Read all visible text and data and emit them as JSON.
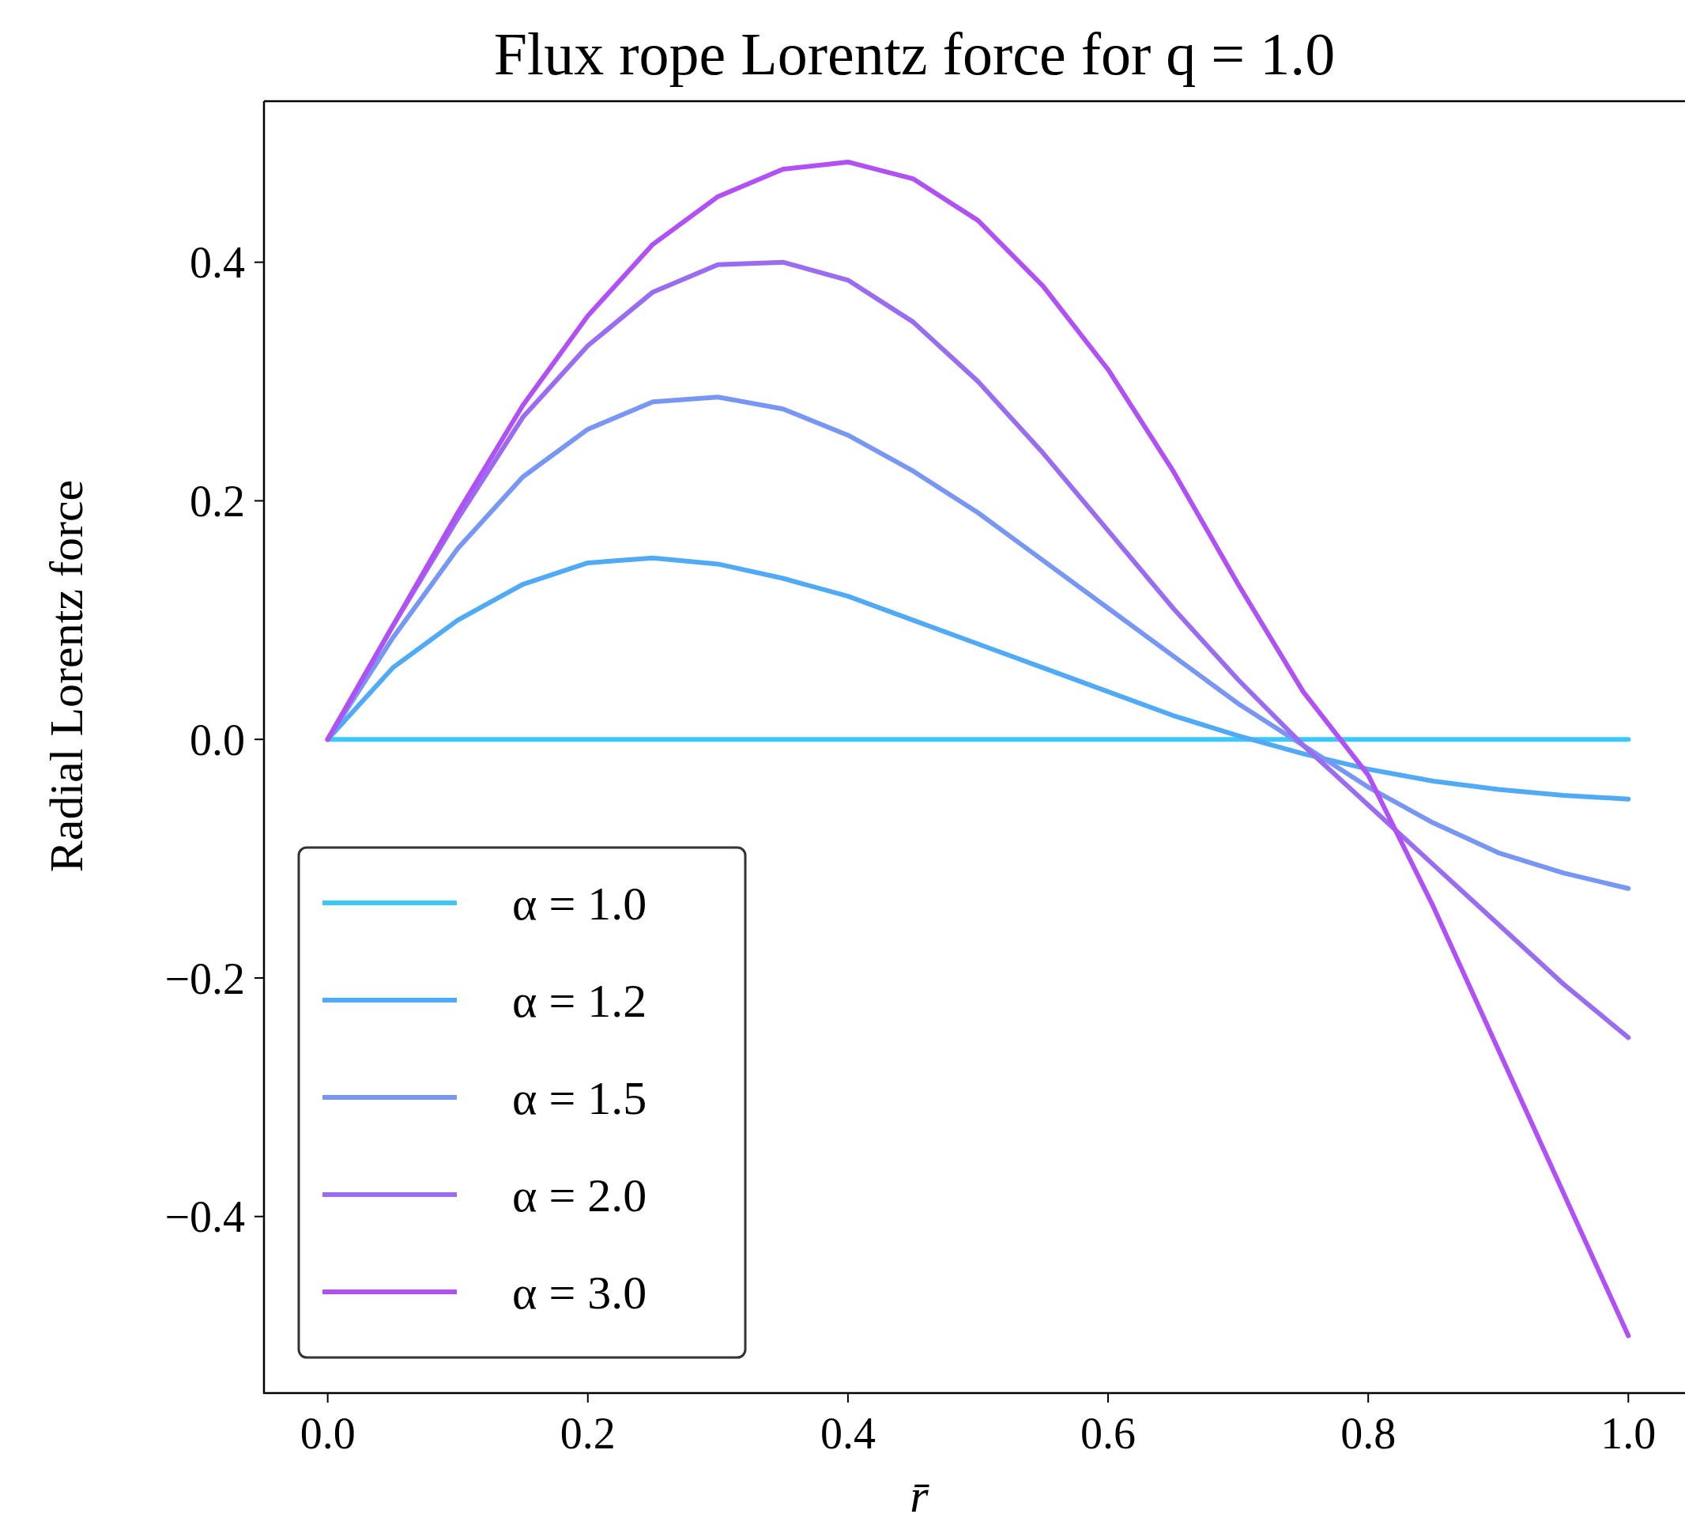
{
  "chart_data": {
    "type": "line",
    "title": "Flux rope Lorentz force for q = 1.0",
    "xlabel": "r̄",
    "ylabel": "Radial Lorentz force",
    "x": [
      0,
      0.05,
      0.1,
      0.15,
      0.2,
      0.25,
      0.3,
      0.35,
      0.4,
      0.45,
      0.5,
      0.55,
      0.6,
      0.65,
      0.7,
      0.75,
      0.8,
      0.85,
      0.9,
      0.95,
      1.0
    ],
    "xlim": [
      -0.049,
      1.046
    ],
    "ylim": [
      -0.548,
      0.535
    ],
    "xticks": [
      {
        "value": 0,
        "label": "0.0"
      },
      0.2,
      0.4,
      0.6,
      0.8,
      {
        "value": 1,
        "label": "1.0"
      }
    ],
    "yticks": [
      {
        "value": -0.4,
        "label": "−0.4"
      },
      {
        "value": -0.2,
        "label": "−0.2"
      },
      {
        "value": 0,
        "label": "0.0"
      },
      0.2,
      0.4
    ],
    "legend": "bottom left",
    "grid": false,
    "line_style": "solid",
    "marker": "none",
    "series": [
      {
        "name": "α = 1.0",
        "color": "#3ec8f8",
        "values": [
          0,
          0,
          0,
          0,
          0,
          0,
          0,
          0,
          0,
          0,
          0,
          0,
          0,
          0,
          0,
          0,
          0,
          0,
          0,
          0,
          0
        ]
      },
      {
        "name": "α = 1.2",
        "color": "#50aaf5",
        "values": [
          0,
          0.06,
          0.1,
          0.13,
          0.148,
          0.152,
          0.147,
          0.135,
          0.12,
          0.1,
          0.08,
          0.06,
          0.04,
          0.02,
          0.003,
          -0.012,
          -0.025,
          -0.035,
          -0.042,
          -0.047,
          -0.05
        ]
      },
      {
        "name": "α = 1.5",
        "color": "#7896f3",
        "values": [
          0,
          0.085,
          0.16,
          0.22,
          0.26,
          0.283,
          0.287,
          0.277,
          0.255,
          0.225,
          0.19,
          0.15,
          0.11,
          0.07,
          0.03,
          -0.005,
          -0.04,
          -0.07,
          -0.095,
          -0.112,
          -0.125
        ]
      },
      {
        "name": "α = 2.0",
        "color": "#9a6cf0",
        "values": [
          0,
          0.095,
          0.185,
          0.27,
          0.33,
          0.375,
          0.398,
          0.4,
          0.385,
          0.35,
          0.3,
          0.24,
          0.175,
          0.11,
          0.05,
          -0.005,
          -0.055,
          -0.105,
          -0.155,
          -0.205,
          -0.25
        ]
      },
      {
        "name": "α = 3.0",
        "color": "#b050f5",
        "values": [
          0,
          0.095,
          0.19,
          0.28,
          0.355,
          0.415,
          0.455,
          0.478,
          0.484,
          0.47,
          0.435,
          0.38,
          0.31,
          0.225,
          0.13,
          0.04,
          -0.03,
          -0.14,
          -0.26,
          -0.38,
          -0.5
        ]
      }
    ]
  }
}
